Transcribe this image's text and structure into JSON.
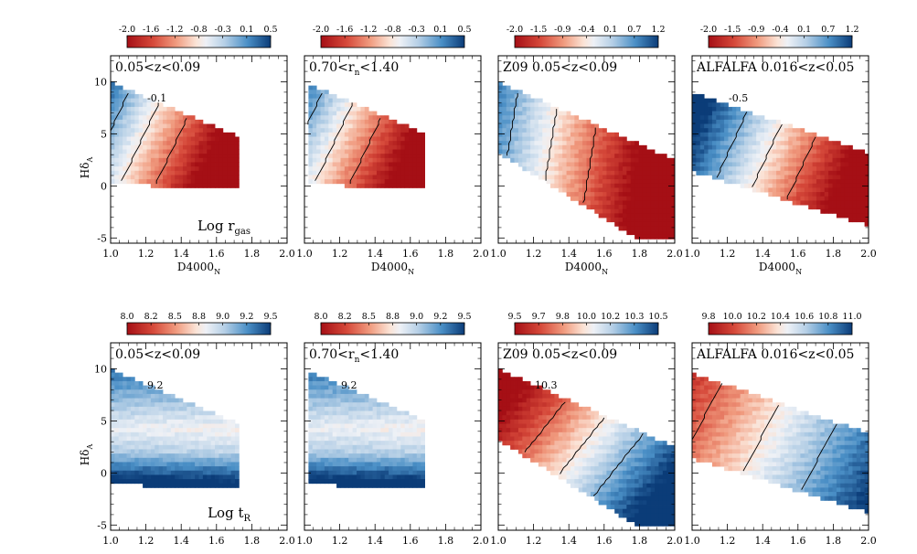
{
  "chart_data": {
    "type": "heatmap",
    "description_axes": {
      "xlabel": "D4000",
      "xlabel_sub": "N",
      "ylabel": "Hδ",
      "ylabel_sub": "A",
      "xlim": [
        1.0,
        2.0
      ],
      "ylim": [
        -5.5,
        12.5
      ],
      "xticks": [
        1.0,
        1.2,
        1.4,
        1.6,
        1.8,
        2.0
      ],
      "xtick_labels": [
        "1.0",
        "1.2",
        "1.4",
        "1.6",
        "1.8",
        "2.0"
      ],
      "yticks": [
        -5,
        0,
        5,
        10
      ],
      "ytick_labels": [
        "-5",
        "0",
        "5",
        "10"
      ]
    },
    "rows": [
      {
        "quantity_label": "Log r",
        "quantity_sub": "gas",
        "panels": [
          {
            "title": "0.05<z<0.09",
            "colorbar_ticks": [
              "-2.0",
              "-1.6",
              "-1.2",
              "-0.8",
              "-0.3",
              "0.1",
              "0.5"
            ],
            "vmin": -2.0,
            "vmax": 0.5,
            "contour_labels": [
              "-0.1"
            ]
          },
          {
            "title_main": "0.70<r",
            "title_sub": "n",
            "title_tail": "<1.40",
            "colorbar_ticks": [
              "-2.0",
              "-1.6",
              "-1.2",
              "-0.8",
              "-0.3",
              "0.1",
              "0.5"
            ],
            "vmin": -2.0,
            "vmax": 0.5,
            "contour_labels": []
          },
          {
            "title": "Z09 0.05<z<0.09",
            "colorbar_ticks": [
              "-2.0",
              "-1.5",
              "-0.9",
              "-0.4",
              "0.1",
              "0.7",
              "1.2"
            ],
            "vmin": -2.0,
            "vmax": 1.2,
            "contour_labels": []
          },
          {
            "title": "ALFALFA 0.016<z<0.05",
            "colorbar_ticks": [
              "-2.0",
              "-1.5",
              "-0.9",
              "-0.4",
              "0.1",
              "0.7",
              "1.2"
            ],
            "vmin": -2.0,
            "vmax": 1.2,
            "contour_labels": [
              "-0.5"
            ]
          }
        ]
      },
      {
        "quantity_label": "Log t",
        "quantity_sub": "R",
        "panels": [
          {
            "title": "0.05<z<0.09",
            "colorbar_ticks": [
              "8.0",
              "8.2",
              "8.5",
              "8.8",
              "9.0",
              "9.2",
              "9.5"
            ],
            "vmin": 8.0,
            "vmax": 9.5,
            "contour_labels": [
              "9.2"
            ]
          },
          {
            "title_main": "0.70<r",
            "title_sub": "n",
            "title_tail": "<1.40",
            "colorbar_ticks": [
              "8.0",
              "8.2",
              "8.5",
              "8.8",
              "9.0",
              "9.2",
              "9.5"
            ],
            "vmin": 8.0,
            "vmax": 9.5,
            "contour_labels": [
              "9.2"
            ]
          },
          {
            "title": "Z09 0.05<z<0.09",
            "colorbar_ticks": [
              "9.5",
              "9.7",
              "9.8",
              "10.0",
              "10.2",
              "10.3",
              "10.5"
            ],
            "vmin": 9.5,
            "vmax": 10.5,
            "contour_labels": [
              "10.3"
            ]
          },
          {
            "title": "ALFALFA 0.016<z<0.05",
            "colorbar_ticks": [
              "9.8",
              "10.0",
              "10.2",
              "10.4",
              "10.6",
              "10.8",
              "11.0"
            ],
            "vmin": 9.8,
            "vmax": 11.0,
            "contour_labels": []
          }
        ]
      }
    ]
  }
}
